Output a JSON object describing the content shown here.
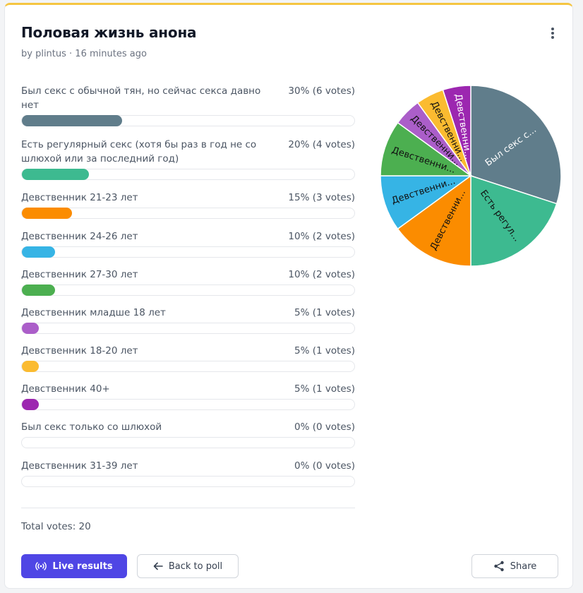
{
  "poll": {
    "title": "Половая жизнь анона",
    "author_line": "by plintus · 16 minutes ago",
    "total_label": "Total votes: 20"
  },
  "options": [
    {
      "label": "Был секс с обычной тян, но сейчас секса давно нет",
      "stat": "30% (6 votes)",
      "percent": 30,
      "color": "#607d8b"
    },
    {
      "label": "Есть регулярный секс (хотя бы раз в год не со шлюхой или за последний год)",
      "stat": "20% (4 votes)",
      "percent": 20,
      "color": "#3dba90"
    },
    {
      "label": "Девственник 21-23 лет",
      "stat": "15% (3 votes)",
      "percent": 15,
      "color": "#fb8c00"
    },
    {
      "label": "Девственник 24-26 лет",
      "stat": "10% (2 votes)",
      "percent": 10,
      "color": "#36b4e5"
    },
    {
      "label": "Девственник 27-30 лет",
      "stat": "10% (2 votes)",
      "percent": 10,
      "color": "#4caf50"
    },
    {
      "label": "Девственник младше 18 лет",
      "stat": "5% (1 votes)",
      "percent": 5,
      "color": "#ab5ec9"
    },
    {
      "label": "Девственник 18-20 лет",
      "stat": "5% (1 votes)",
      "percent": 5,
      "color": "#fbbb30"
    },
    {
      "label": "Девственник 40+",
      "stat": "5% (1 votes)",
      "percent": 5,
      "color": "#9c27b0"
    },
    {
      "label": "Был секс только со шлюхой",
      "stat": "0% (0 votes)",
      "percent": 0,
      "color": "#9ca3af"
    },
    {
      "label": "Девственник 31-39 лет",
      "stat": "0% (0 votes)",
      "percent": 0,
      "color": "#9ca3af"
    }
  ],
  "chart_data": {
    "type": "pie",
    "slices": [
      {
        "label": "Был секс с...",
        "value": 6,
        "color": "#607d8b",
        "text_color": "#ffffff"
      },
      {
        "label": "Есть регул...",
        "value": 4,
        "color": "#3dba90",
        "text_color": "#111111"
      },
      {
        "label": "Девственни...",
        "value": 3,
        "color": "#fb8c00",
        "text_color": "#111111"
      },
      {
        "label": "Девственни...",
        "value": 2,
        "color": "#36b4e5",
        "text_color": "#111111"
      },
      {
        "label": "Девственни...",
        "value": 2,
        "color": "#4caf50",
        "text_color": "#111111"
      },
      {
        "label": "Девственни...",
        "value": 1,
        "color": "#ab5ec9",
        "text_color": "#111111"
      },
      {
        "label": "Девственни...",
        "value": 1,
        "color": "#fbbb30",
        "text_color": "#111111"
      },
      {
        "label": "Девственни...",
        "value": 1,
        "color": "#9c27b0",
        "text_color": "#ffffff"
      }
    ]
  },
  "buttons": {
    "live_results": "Live results",
    "back_to_poll": "Back to poll",
    "share": "Share"
  },
  "icons": {
    "menu": "kebab-icon",
    "live": "broadcast-icon",
    "back": "arrow-left-icon",
    "share": "share-icon"
  }
}
